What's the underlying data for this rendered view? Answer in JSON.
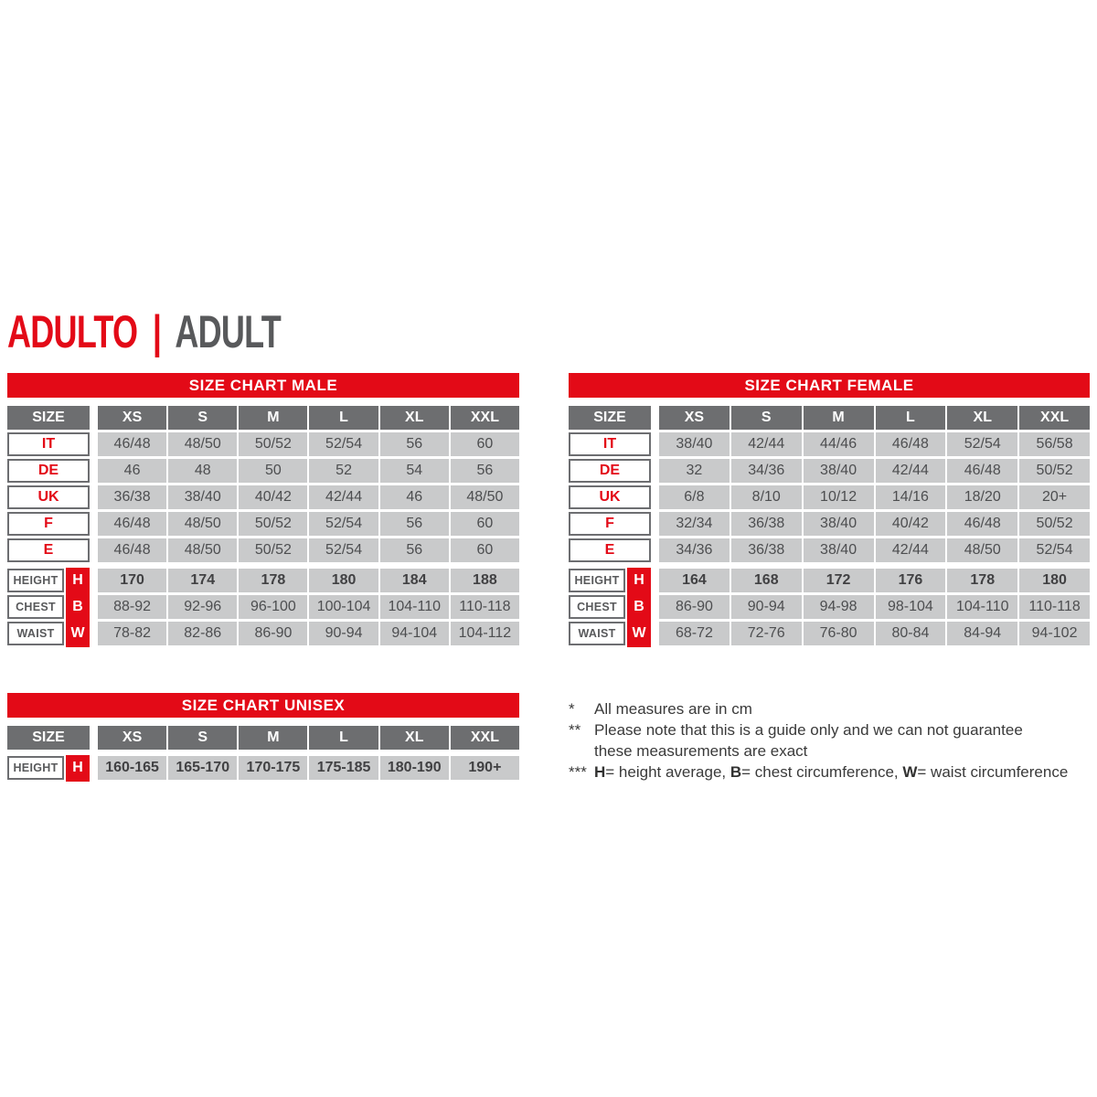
{
  "title": {
    "primary": "ADULTO",
    "separator": "|",
    "secondary": "ADULT"
  },
  "size_header_label": "SIZE",
  "columns": [
    "XS",
    "S",
    "M",
    "L",
    "XL",
    "XXL"
  ],
  "colors": {
    "red": "#E30A17",
    "header_gray": "#6D6E70",
    "cell_gray": "#C9CACB",
    "cell_text": "#4D4E50",
    "label_gray": "#58595B",
    "footnote_text": "#3A3A3A"
  },
  "tables": [
    {
      "id": "male",
      "title": "SIZE CHART MALE",
      "size_rows": [
        {
          "label": "IT",
          "values": [
            "46/48",
            "48/50",
            "50/52",
            "52/54",
            "56",
            "60"
          ]
        },
        {
          "label": "DE",
          "values": [
            "46",
            "48",
            "50",
            "52",
            "54",
            "56"
          ]
        },
        {
          "label": "UK",
          "values": [
            "36/38",
            "38/40",
            "40/42",
            "42/44",
            "46",
            "48/50"
          ]
        },
        {
          "label": "F",
          "values": [
            "46/48",
            "48/50",
            "50/52",
            "52/54",
            "56",
            "60"
          ]
        },
        {
          "label": "E",
          "values": [
            "46/48",
            "48/50",
            "50/52",
            "52/54",
            "56",
            "60"
          ]
        }
      ],
      "measure_rows": [
        {
          "label": "HEIGHT",
          "code": "H",
          "bold": true,
          "values": [
            "170",
            "174",
            "178",
            "180",
            "184",
            "188"
          ]
        },
        {
          "label": "CHEST",
          "code": "B",
          "bold": false,
          "values": [
            "88-92",
            "92-96",
            "96-100",
            "100-104",
            "104-110",
            "110-118"
          ]
        },
        {
          "label": "WAIST",
          "code": "W",
          "bold": false,
          "values": [
            "78-82",
            "82-86",
            "86-90",
            "90-94",
            "94-104",
            "104-112"
          ]
        }
      ]
    },
    {
      "id": "female",
      "title": "SIZE CHART FEMALE",
      "size_rows": [
        {
          "label": "IT",
          "values": [
            "38/40",
            "42/44",
            "44/46",
            "46/48",
            "52/54",
            "56/58"
          ]
        },
        {
          "label": "DE",
          "values": [
            "32",
            "34/36",
            "38/40",
            "42/44",
            "46/48",
            "50/52"
          ]
        },
        {
          "label": "UK",
          "values": [
            "6/8",
            "8/10",
            "10/12",
            "14/16",
            "18/20",
            "20+"
          ]
        },
        {
          "label": "F",
          "values": [
            "32/34",
            "36/38",
            "38/40",
            "40/42",
            "46/48",
            "50/52"
          ]
        },
        {
          "label": "E",
          "values": [
            "34/36",
            "36/38",
            "38/40",
            "42/44",
            "48/50",
            "52/54"
          ]
        }
      ],
      "measure_rows": [
        {
          "label": "HEIGHT",
          "code": "H",
          "bold": true,
          "values": [
            "164",
            "168",
            "172",
            "176",
            "178",
            "180"
          ]
        },
        {
          "label": "CHEST",
          "code": "B",
          "bold": false,
          "values": [
            "86-90",
            "90-94",
            "94-98",
            "98-104",
            "104-110",
            "110-118"
          ]
        },
        {
          "label": "WAIST",
          "code": "W",
          "bold": false,
          "values": [
            "68-72",
            "72-76",
            "76-80",
            "80-84",
            "84-94",
            "94-102"
          ]
        }
      ]
    },
    {
      "id": "unisex",
      "title": "SIZE CHART UNISEX",
      "size_rows": [],
      "measure_rows": [
        {
          "label": "HEIGHT",
          "code": "H",
          "bold": true,
          "values": [
            "160-165",
            "165-170",
            "170-175",
            "175-185",
            "180-190",
            "190+"
          ]
        }
      ]
    }
  ],
  "footnotes": [
    {
      "marker": "*",
      "segments": [
        {
          "text": "All measures are in cm",
          "bold": false
        }
      ]
    },
    {
      "marker": "**",
      "segments": [
        {
          "text": "Please note that this is a guide only and we can not guarantee\nthese measurements are exact",
          "bold": false
        }
      ]
    },
    {
      "marker": "***",
      "segments": [
        {
          "text": "H",
          "bold": true
        },
        {
          "text": "= height average, ",
          "bold": false
        },
        {
          "text": "B",
          "bold": true
        },
        {
          "text": "= chest circumference, ",
          "bold": false
        },
        {
          "text": "W",
          "bold": true
        },
        {
          "text": "= waist circumference",
          "bold": false
        }
      ]
    }
  ]
}
